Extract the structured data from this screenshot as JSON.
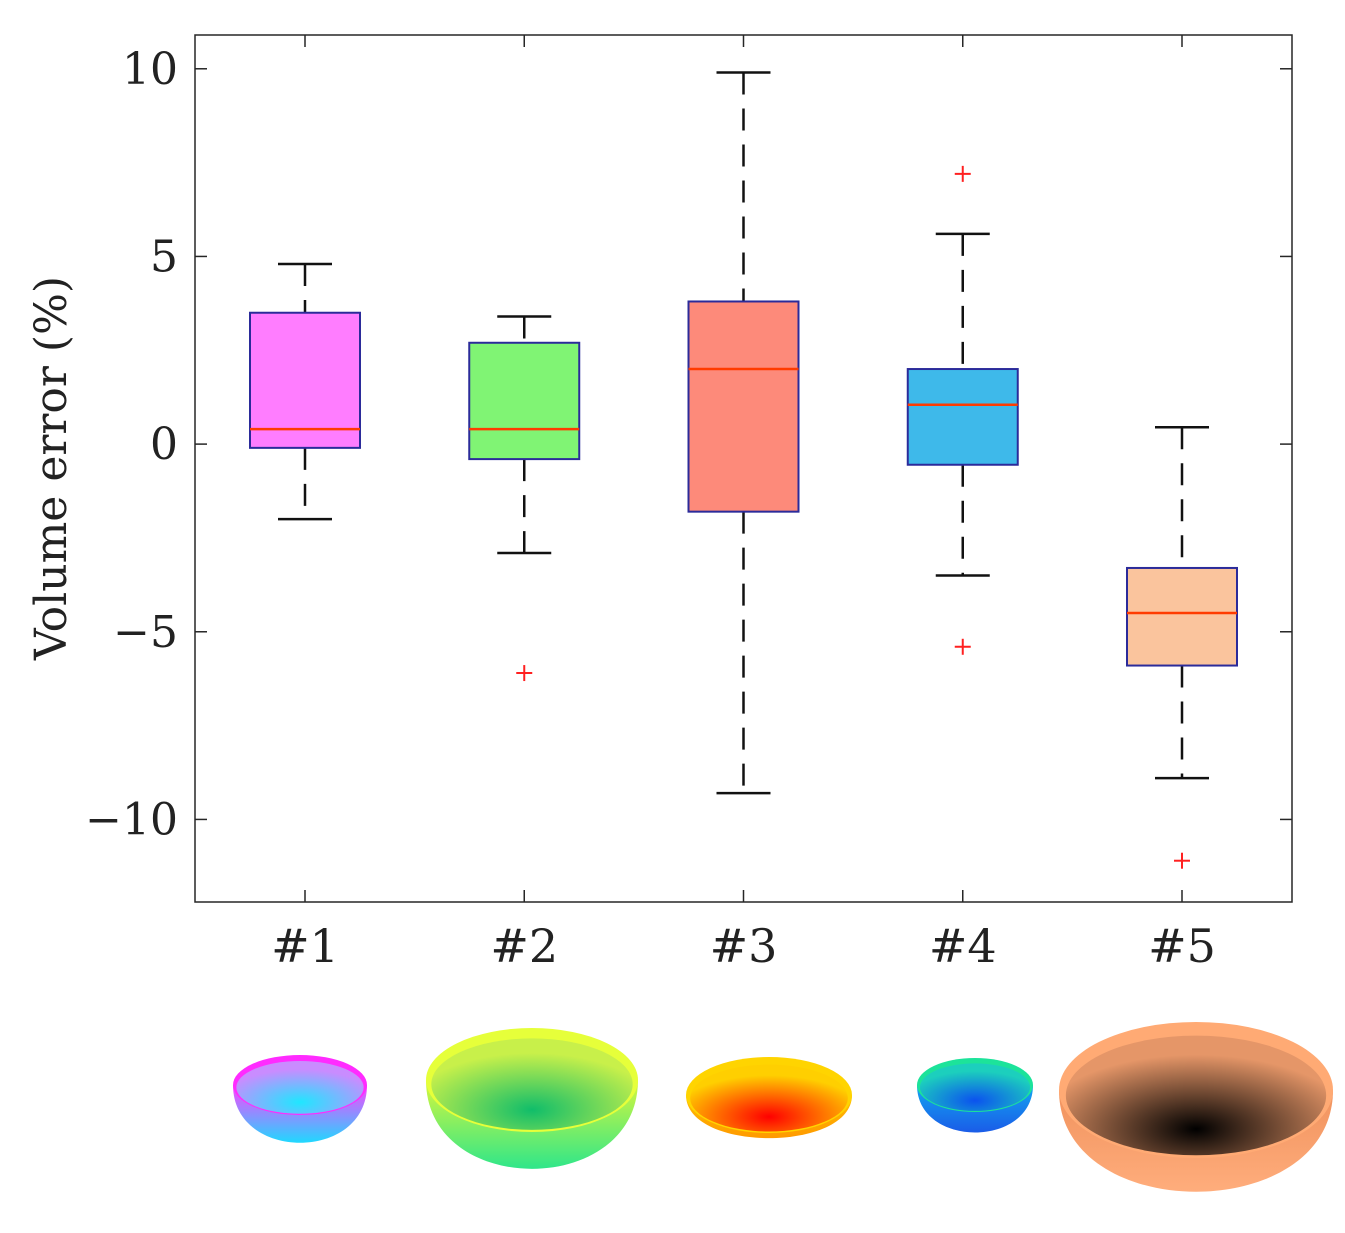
{
  "chart_data": {
    "type": "boxplot",
    "title": "",
    "xlabel": "",
    "ylabel": "Volume error (%)",
    "ylim": [
      -12.2,
      10.9
    ],
    "yticks": [
      10,
      5,
      0,
      -5,
      -10
    ],
    "ytick_labels": [
      "10",
      "5",
      "0",
      "−5",
      "−10"
    ],
    "grid": false,
    "categories": [
      "#1",
      "#2",
      "#3",
      "#4",
      "#5"
    ],
    "series": [
      {
        "name": "#1",
        "whisker_low": -2.0,
        "q1": -0.1,
        "median": 0.4,
        "q3": 3.5,
        "whisker_high": 4.8,
        "outliers": [],
        "color": "#ff7dff"
      },
      {
        "name": "#2",
        "whisker_low": -2.9,
        "q1": -0.4,
        "median": 0.4,
        "q3": 2.7,
        "whisker_high": 3.4,
        "outliers": [
          -6.1
        ],
        "color": "#80f474"
      },
      {
        "name": "#3",
        "whisker_low": -9.3,
        "q1": -1.8,
        "median": 2.0,
        "q3": 3.8,
        "whisker_high": 9.9,
        "outliers": [],
        "color": "#fd8a7a"
      },
      {
        "name": "#4",
        "whisker_low": -3.5,
        "q1": -0.55,
        "median": 1.05,
        "q3": 2.0,
        "whisker_high": 5.6,
        "outliers": [
          7.2,
          -5.4
        ],
        "color": "#3eb9ea"
      },
      {
        "name": "#5",
        "whisker_low": -8.9,
        "q1": -5.9,
        "median": -4.5,
        "q3": -3.3,
        "whisker_high": 0.45,
        "outliers": [
          -11.1
        ],
        "color": "#fac49d"
      }
    ],
    "styles": {
      "box_edge": "#2b2b9a",
      "median_line": "#ff3b00",
      "whisker": "#111111",
      "outlier_marker": "#ff2020"
    }
  },
  "bowls": [
    {
      "name": "#1",
      "rim": "#ff2bff",
      "inner_top": "#c98cff",
      "inner_bottom": "#1fe7ff",
      "outer_top": "#ff43ff",
      "outer_bottom": "#1fd9ff"
    },
    {
      "name": "#2",
      "rim": "#e6ff3a",
      "inner_top": "#c8f04a",
      "inner_bottom": "#10bd6a",
      "outer_top": "#d9f73a",
      "outer_bottom": "#2fe68a"
    },
    {
      "name": "#3",
      "rim": "#ffd400",
      "inner_top": "#ffcf00",
      "inner_bottom": "#ff0000",
      "outer_top": "#ffbe00",
      "outer_bottom": "#ff9a00"
    },
    {
      "name": "#4",
      "rim": "#1ce39a",
      "inner_top": "#1ccfbd",
      "inner_bottom": "#0b52ef",
      "outer_top": "#12a6f0",
      "outer_bottom": "#1a5ce8"
    },
    {
      "name": "#5",
      "rim": "#ffaa74",
      "inner_top": "#e59668",
      "inner_bottom": "#000000",
      "outer_top": "#f0925d",
      "outer_bottom": "#ffad7c"
    }
  ]
}
